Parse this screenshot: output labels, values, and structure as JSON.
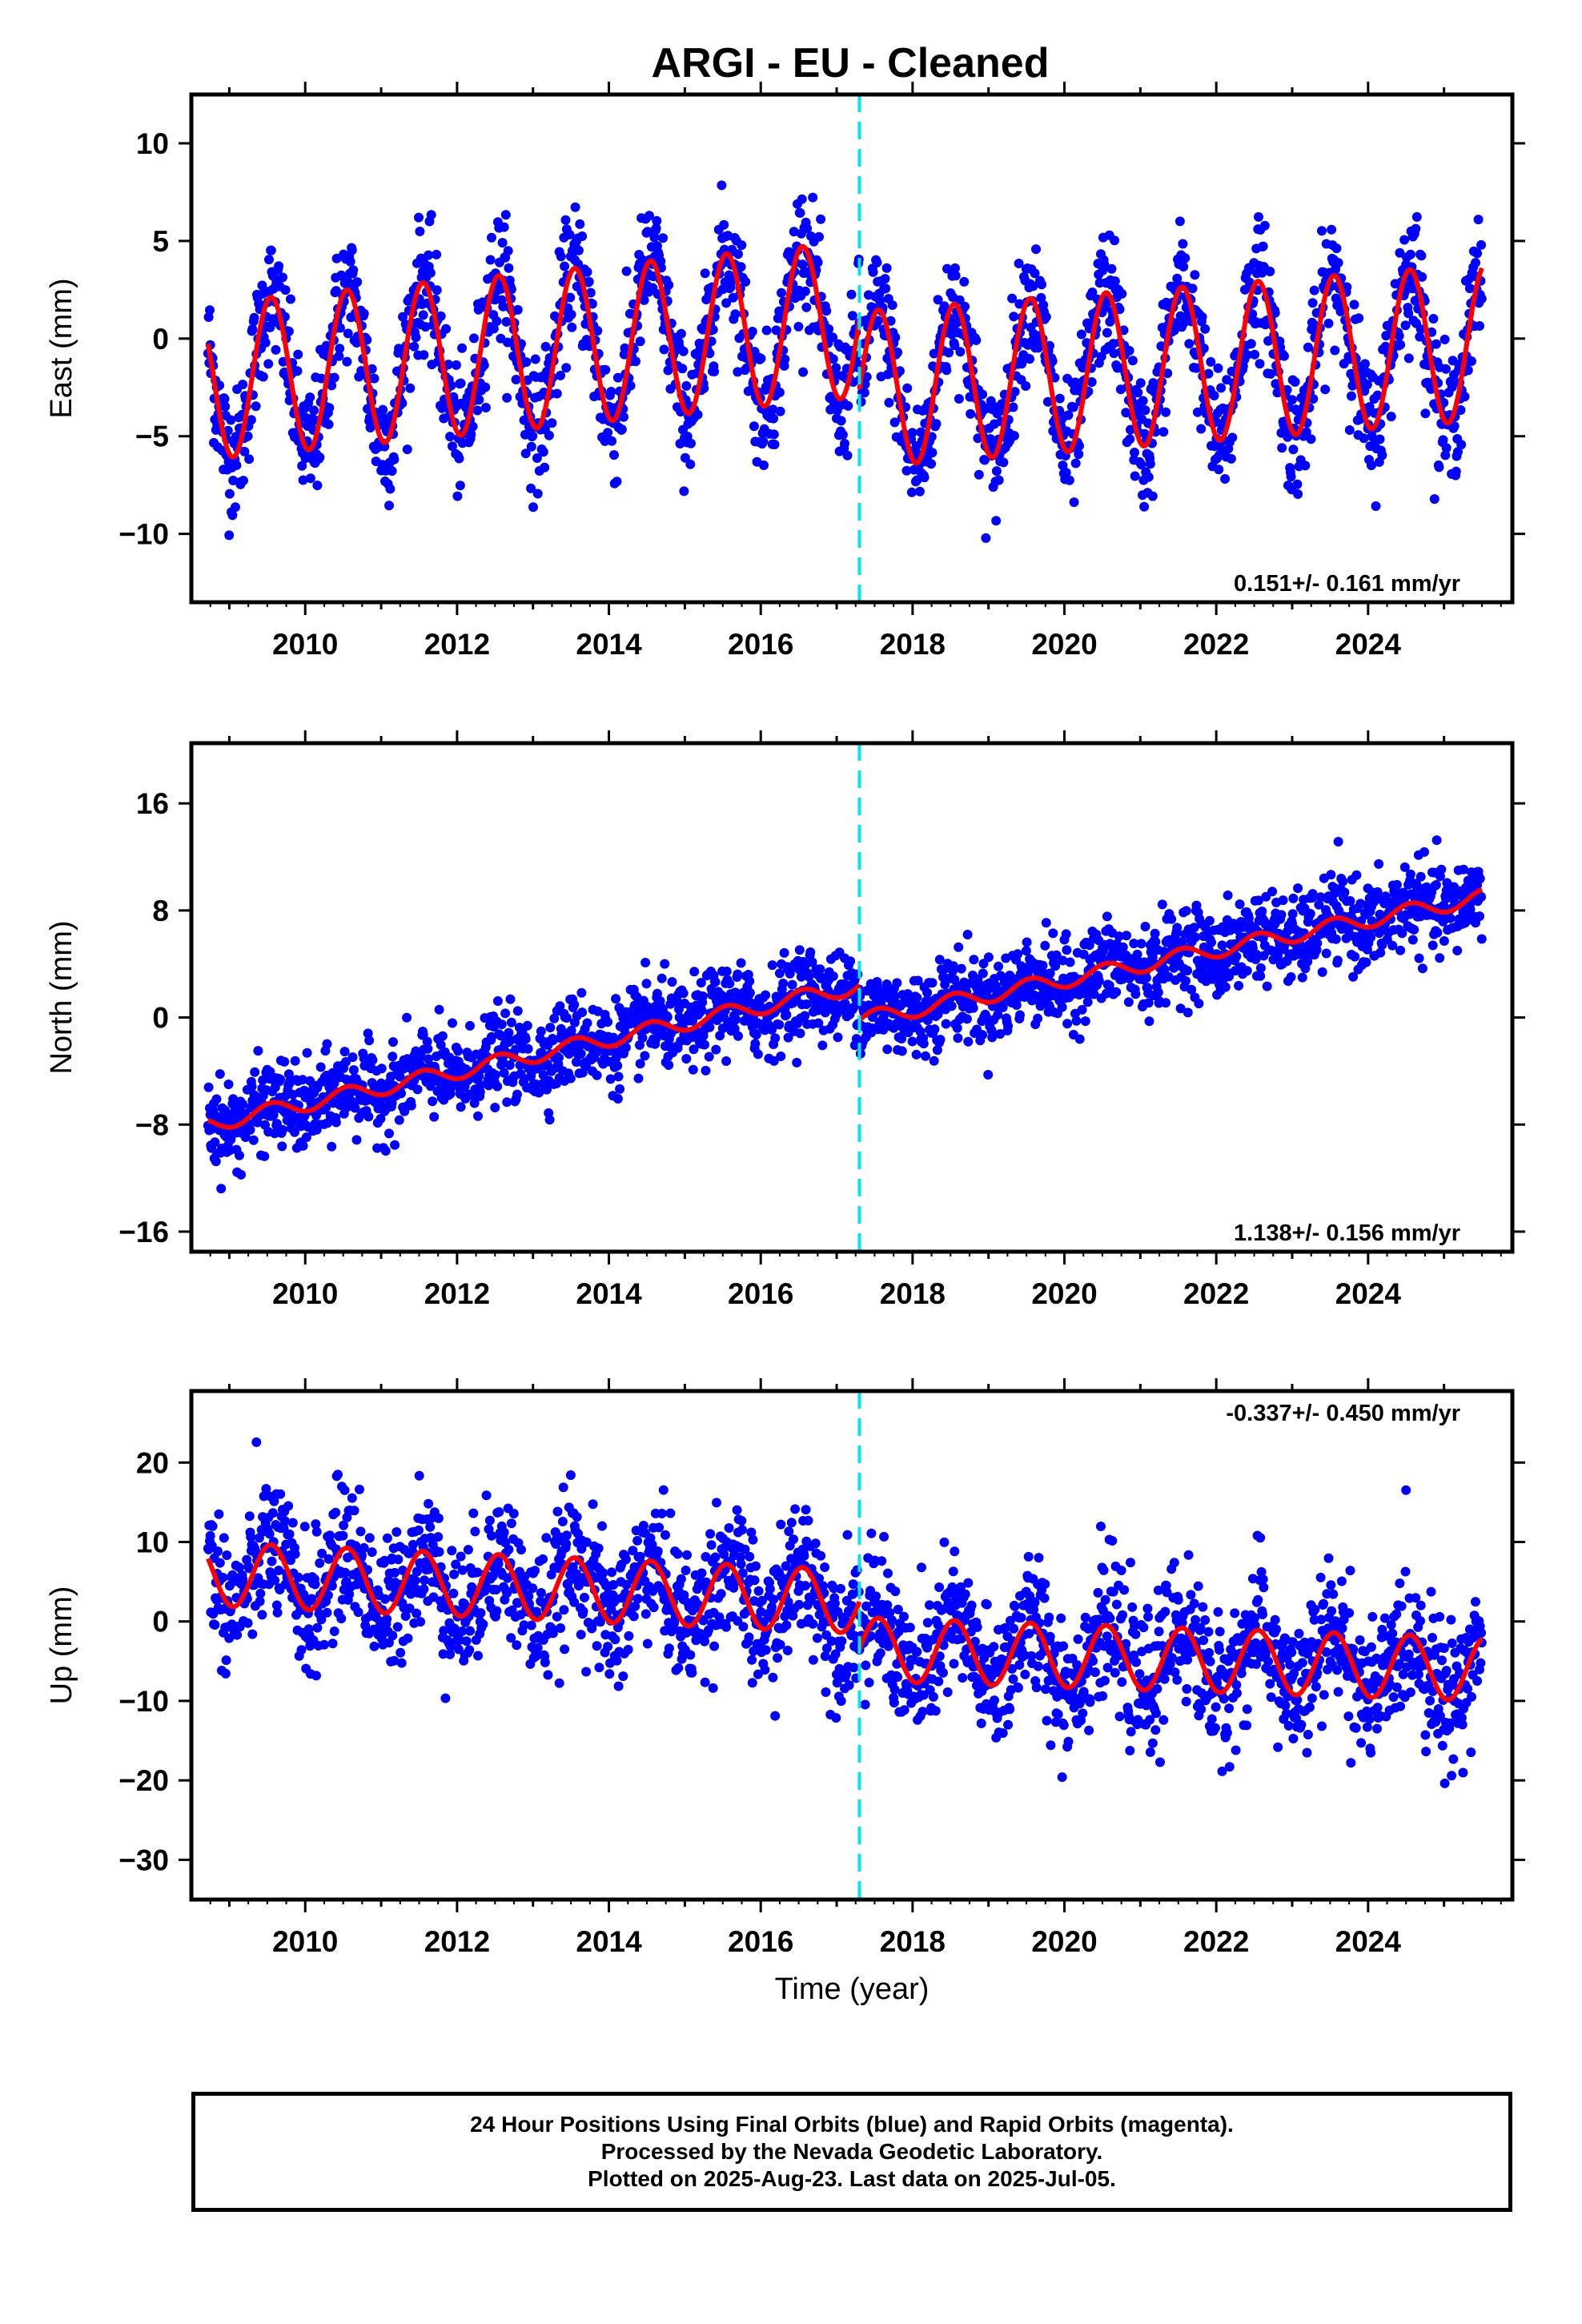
{
  "title": "ARGI  - EU - Cleaned",
  "colors": {
    "points": "#0000ff",
    "model": "#ff0000",
    "offset": "#00e5ee",
    "frame": "#000000"
  },
  "xaxis": {
    "label": "Time (year)",
    "ticks": [
      "2010",
      "2012",
      "2014",
      "2016",
      "2018",
      "2020",
      "2022",
      "2024"
    ]
  },
  "offset_epoch": 2017.3,
  "chart_data": [
    {
      "type": "scatter",
      "name": "east",
      "ylabel": "East (mm)",
      "xlim": [
        2008.5,
        2025.9
      ],
      "ylim": [
        -13.5,
        12.5
      ],
      "yticks": [
        "10",
        "5",
        "0",
        "-5",
        "-10"
      ],
      "rate_label": "0.151+/- 0.161 mm/yr",
      "rate_position": "bottom-right",
      "points_color": "blue",
      "model": {
        "amplitude": 4.0,
        "noise_sd": 1.6,
        "pre_offset_start": -2.2,
        "pre_offset_end": 1.0,
        "post_offset_start": -2.6,
        "post_offset_end": -0.2
      }
    },
    {
      "type": "scatter",
      "name": "north",
      "ylabel": "North (mm)",
      "xlim": [
        2008.5,
        2025.9
      ],
      "ylim": [
        -17.5,
        20.5
      ],
      "yticks": [
        "16",
        "8",
        "0",
        "-8",
        "-16"
      ],
      "rate_label": "1.138+/- 0.156 mm/yr",
      "rate_position": "bottom-right",
      "points_color": "blue",
      "model": {
        "amplitude": 0.6,
        "noise_sd": 1.6,
        "pre_offset_start": -8.0,
        "pre_offset_end": 2.4,
        "post_offset_start": -0.2,
        "post_offset_end": 9.0
      }
    },
    {
      "type": "scatter",
      "name": "up",
      "ylabel": "Up (mm)",
      "xlim": [
        2008.5,
        2025.9
      ],
      "ylim": [
        -35,
        29
      ],
      "yticks": [
        "20",
        "10",
        "0",
        "-10",
        "-20",
        "-30"
      ],
      "rate_label": "-0.337+/- 0.450 mm/yr",
      "rate_position": "top-right",
      "points_color": "blue",
      "model": {
        "amplitude": 4.0,
        "noise_sd": 4.3,
        "pre_offset_start": 6.0,
        "pre_offset_end": 2.5,
        "post_offset_start": -3.5,
        "post_offset_end": -6.0
      }
    }
  ],
  "footer": {
    "line1": "24 Hour Positions Using Final Orbits (blue) and Rapid Orbits (magenta).",
    "line2": "Processed by the Nevada Geodetic Laboratory.",
    "line3": "Plotted on 2025-Aug-23. Last data on 2025-Jul-05."
  }
}
